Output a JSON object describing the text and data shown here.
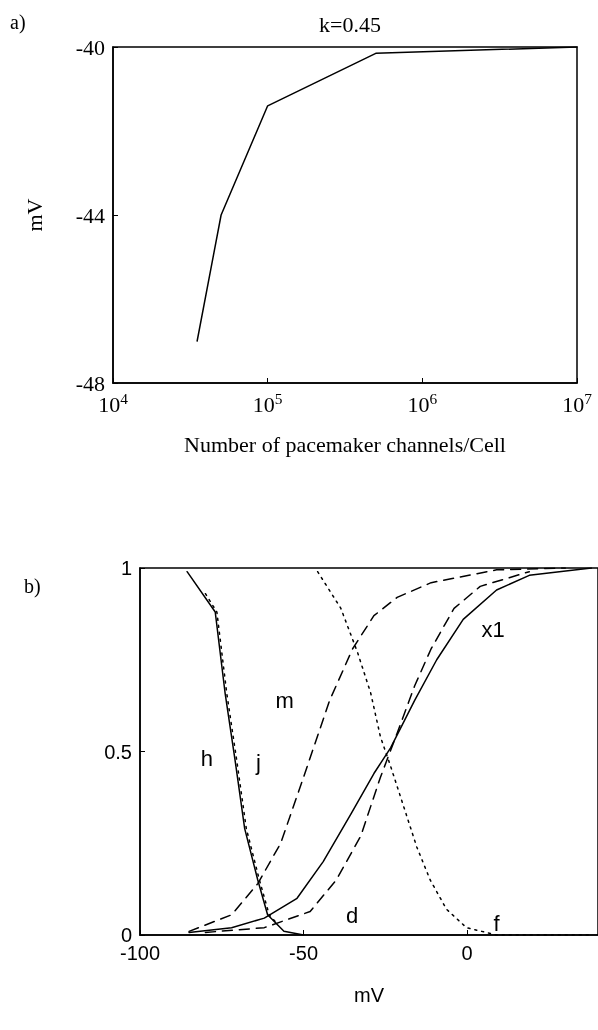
{
  "chart_data": [
    {
      "type": "line",
      "title": "k=0.45",
      "xlabel": "Number of pacemaker channels/Cell",
      "ylabel": "mV",
      "annotations": [
        "a)"
      ],
      "log": "x",
      "x": [
        35000,
        50000,
        100000,
        500000,
        10000000
      ],
      "series": [
        {
          "color": "#000000",
          "values": [
            -47.0,
            -44.0,
            -41.4,
            -40.15,
            -40.0
          ]
        }
      ],
      "xlim": [
        10000,
        10000000
      ],
      "xticks": [
        {
          "value": 10000,
          "label": "10$^{4}$"
        },
        {
          "value": 100000,
          "label": "10$^{5}$"
        },
        {
          "value": 1000000,
          "label": "10$^{6}$"
        },
        {
          "value": 10000000,
          "label": "10$^{7}$"
        }
      ],
      "ylim": [
        -48,
        -40
      ],
      "yticks": [
        -48,
        -44,
        -40
      ],
      "grid": false,
      "legend": false,
      "marker": "none"
    },
    {
      "type": "line",
      "xlabel": "mV",
      "annotations": [
        "b)"
      ],
      "series": [
        {
          "name": "h",
          "color": "#000000",
          "line_style": "solid",
          "x": [
            -85.6,
            -77,
            -74,
            -71,
            -68,
            -64,
            -61,
            -56,
            -50
          ],
          "values": [
            0.99,
            0.88,
            0.66,
            0.48,
            0.29,
            0.15,
            0.055,
            0.01,
            0
          ]
        },
        {
          "name": "j",
          "color": "#000000",
          "line_style": "dotted",
          "x": [
            -80,
            -76.5,
            -73.5,
            -70.5,
            -67.5,
            -63.5,
            -60.5,
            -58
          ],
          "values": [
            0.93,
            0.88,
            0.66,
            0.48,
            0.29,
            0.15,
            0.055,
            0.03
          ]
        },
        {
          "name": "m",
          "color": "#000000",
          "line_style": "dashed",
          "x": [
            -85,
            -72,
            -64,
            -57,
            -50,
            -42,
            -35,
            -28.5,
            -21.4,
            -11,
            9,
            30
          ],
          "values": [
            0.01,
            0.055,
            0.14,
            0.25,
            0.43,
            0.64,
            0.78,
            0.87,
            0.92,
            0.96,
            0.995,
            1
          ]
        },
        {
          "name": "d",
          "color": "#000000",
          "line_style": "dashed",
          "x": [
            -80,
            -62,
            -48,
            -40,
            -32.5,
            -26.5,
            -21.4,
            -16,
            -11,
            -4,
            4,
            19
          ],
          "values": [
            0.007,
            0.02,
            0.064,
            0.15,
            0.27,
            0.43,
            0.55,
            0.68,
            0.78,
            0.89,
            0.95,
            0.99
          ]
        },
        {
          "name": "x1",
          "color": "#000000",
          "line_style": "solid",
          "x": [
            -85,
            -72,
            -62,
            -52,
            -44,
            -35.5,
            -28.5,
            -23.4,
            -16,
            -9.3,
            -1.2,
            9,
            19,
            38
          ],
          "values": [
            0.007,
            0.02,
            0.046,
            0.1,
            0.2,
            0.33,
            0.44,
            0.51,
            0.64,
            0.75,
            0.86,
            0.94,
            0.98,
            1
          ]
        },
        {
          "name": "f",
          "color": "#000000",
          "line_style": "dotted",
          "x": [
            -45.7,
            -38.6,
            -33.5,
            -29.5,
            -26.5,
            -23.4,
            -19.4,
            -15.4,
            -11.3,
            -6.3,
            -0.2,
            9,
            38
          ],
          "values": [
            0.99,
            0.89,
            0.77,
            0.66,
            0.54,
            0.46,
            0.35,
            0.24,
            0.15,
            0.07,
            0.02,
            0,
            0
          ]
        }
      ],
      "xlim": [
        -100,
        40
      ],
      "xticks": [
        -100,
        -50,
        0
      ],
      "ylim": [
        0,
        1
      ],
      "yticks": [
        0,
        0.5,
        1
      ],
      "grid": false,
      "legend": false,
      "marker": "none"
    }
  ]
}
